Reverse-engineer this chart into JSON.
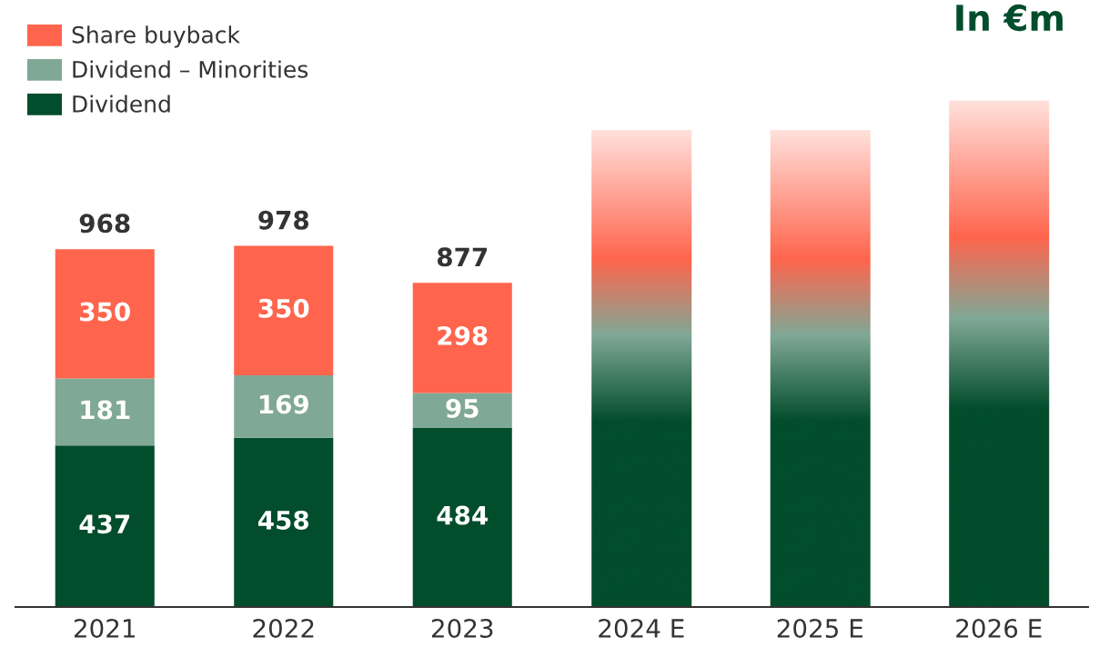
{
  "chart_data": {
    "type": "bar",
    "title": "In €m",
    "categories": [
      "2021",
      "2022",
      "2023",
      "2024 E",
      "2025 E",
      "2026 E"
    ],
    "stacked": true,
    "series": [
      {
        "name": "Dividend",
        "color": "#024d2c",
        "values": [
          437,
          458,
          484,
          null,
          null,
          null
        ],
        "value_labels": [
          "437",
          "458",
          "484",
          null,
          null,
          null
        ]
      },
      {
        "name": "Dividend – Minorities",
        "color": "#80a896",
        "values": [
          181,
          169,
          95,
          null,
          null,
          null
        ],
        "value_labels": [
          "181",
          "169",
          "95",
          null,
          null,
          null
        ]
      },
      {
        "name": "Share buyback",
        "color": "#ff654d",
        "values": [
          350,
          350,
          298,
          null,
          null,
          null
        ],
        "value_labels": [
          "350",
          "350",
          "298",
          null,
          null,
          null
        ]
      },
      {
        "values": [
          null,
          null,
          null,
          1290,
          1290,
          1370
        ]
      }
    ],
    "totals": [
      "968",
      "978",
      "877",
      null,
      null,
      null
    ],
    "legend": "top left"
  }
}
